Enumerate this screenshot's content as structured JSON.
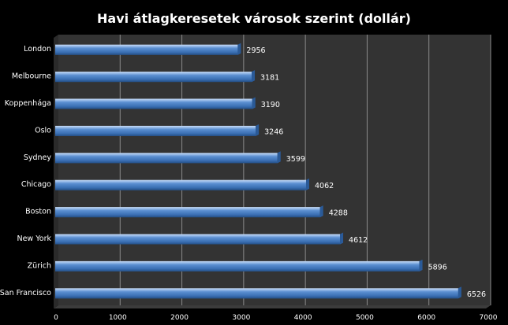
{
  "chart_data": {
    "type": "bar",
    "orientation": "horizontal",
    "title": "Havi átlagkeresetek városok szerint (dollár)",
    "categories": [
      "London",
      "Melbourne",
      "Koppenhága",
      "Oslo",
      "Sydney",
      "Chicago",
      "Boston",
      "New York",
      "Zürich",
      "San Francisco"
    ],
    "values": [
      2956,
      3181,
      3190,
      3246,
      3599,
      4062,
      4288,
      4612,
      5896,
      6526
    ],
    "xlabel": "",
    "ylabel": "",
    "xlim": [
      0,
      7000
    ],
    "ticks": [
      0,
      1000,
      2000,
      3000,
      4000,
      5000,
      6000,
      7000
    ],
    "tick_labels": [
      "0",
      "1000",
      "2000",
      "3000",
      "4000",
      "5000",
      "6000",
      "7000"
    ],
    "data_labels": true,
    "grid": "vertical",
    "legend": "none",
    "colors": {
      "background": "#000000",
      "plot_area": "#333333",
      "gridline": "#8a8a8a",
      "bar": "#4f81bd",
      "bar_light": "#9dc3f0",
      "bar_dark": "#2f5d95",
      "text": "#ffffff"
    }
  }
}
